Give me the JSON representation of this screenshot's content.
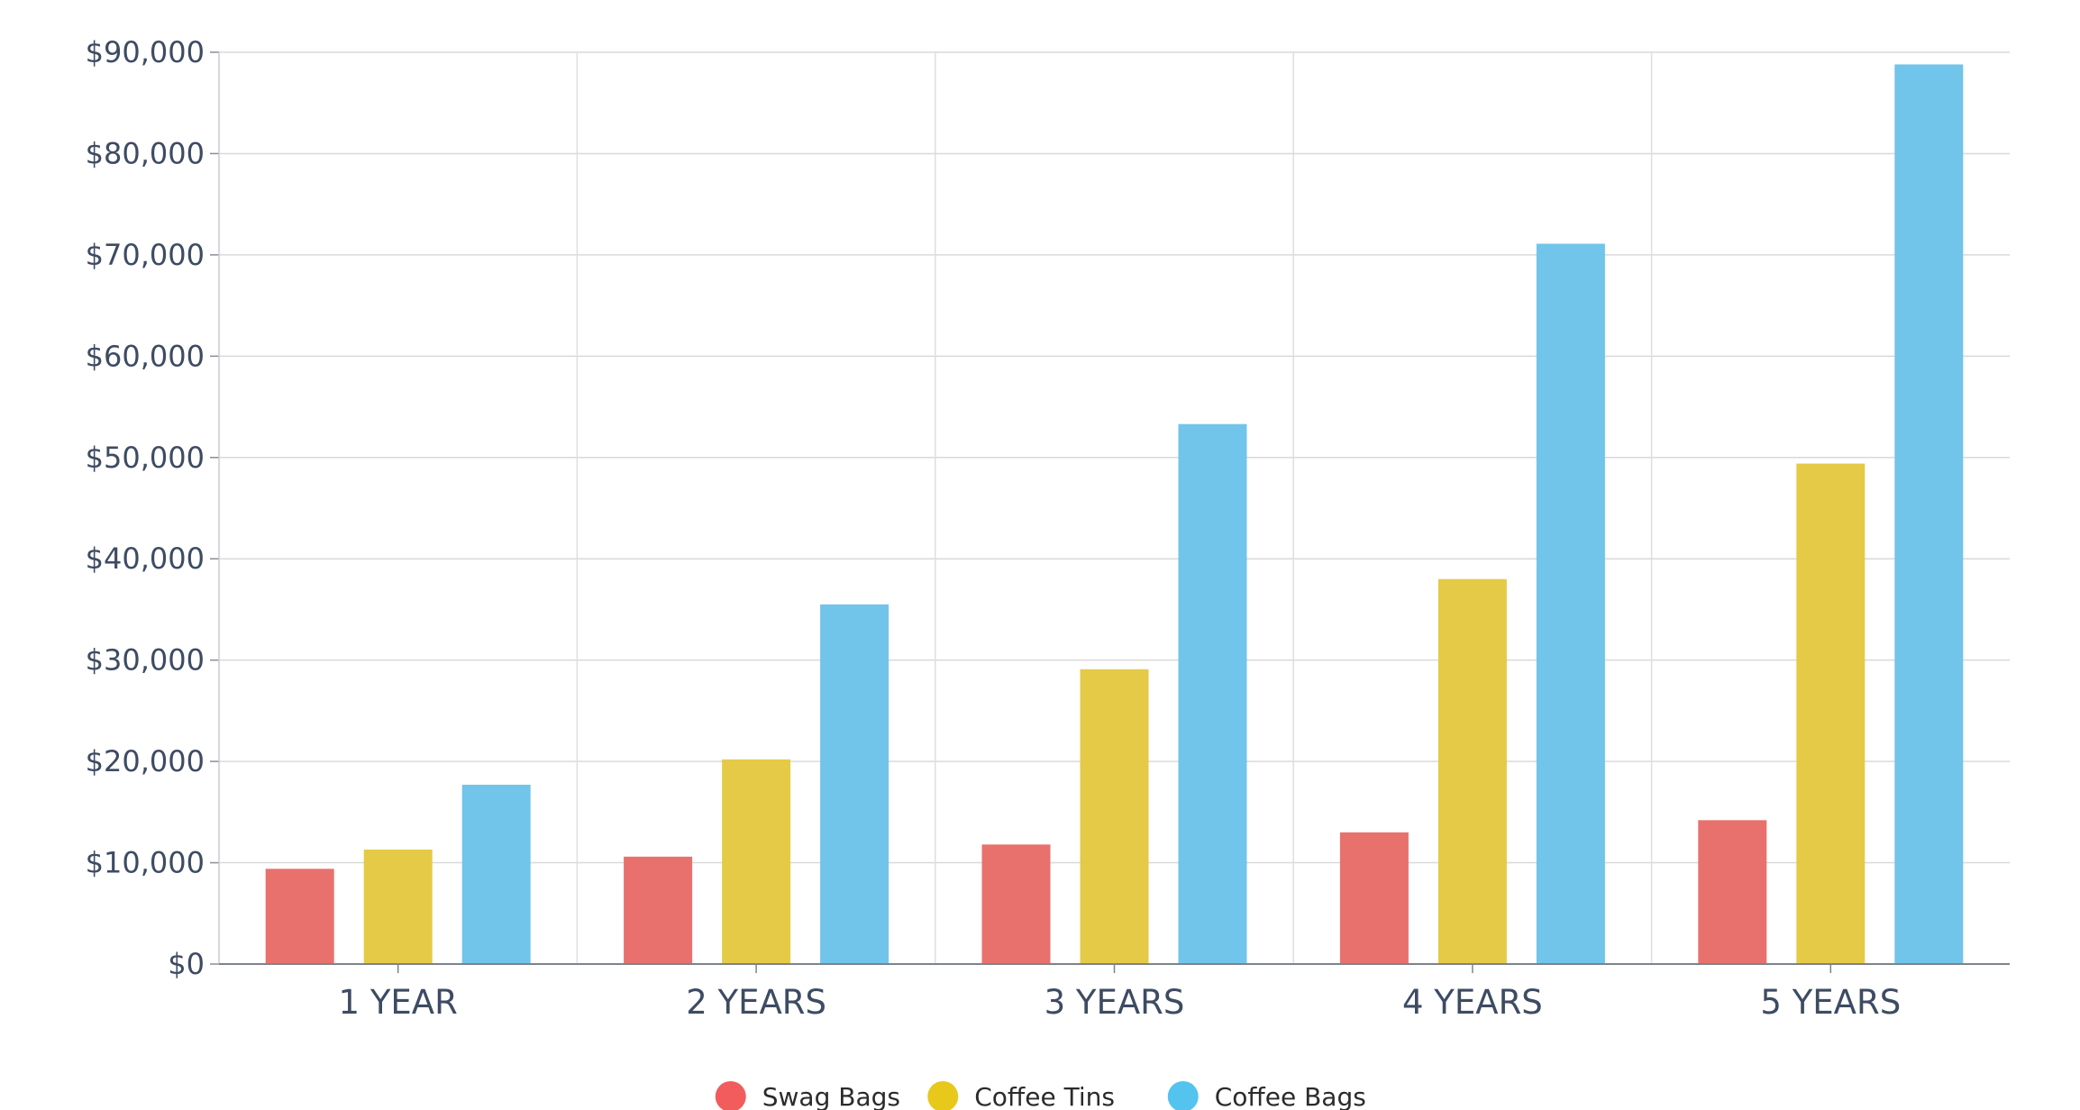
{
  "chart_data": {
    "type": "bar",
    "title": "",
    "xlabel": "",
    "ylabel": "",
    "categories": [
      "1 YEAR",
      "2 YEARS",
      "3 YEARS",
      "4 YEARS",
      "5 YEARS"
    ],
    "series": [
      {
        "name": "Swag Bags",
        "color": "#e8716d",
        "values": [
          9400,
          10600,
          11800,
          13000,
          14200
        ]
      },
      {
        "name": "Coffee Tins",
        "color": "#e5ca47",
        "values": [
          11300,
          20200,
          29100,
          38000,
          49400
        ]
      },
      {
        "name": "Coffee Bags",
        "color": "#71c4ea",
        "values": [
          17700,
          35500,
          53300,
          71100,
          88800
        ]
      }
    ],
    "ylim": [
      0,
      90000
    ],
    "yticks": [
      "$0",
      "$10,000",
      "$20,000",
      "$30,000",
      "$40,000",
      "$50,000",
      "$60,000",
      "$70,000",
      "$80,000",
      "$90,000"
    ],
    "grid": true,
    "legend_position": "bottom-center",
    "legend_marker_colors": [
      "#f25c5c",
      "#e8c81a",
      "#54c3ee"
    ]
  }
}
